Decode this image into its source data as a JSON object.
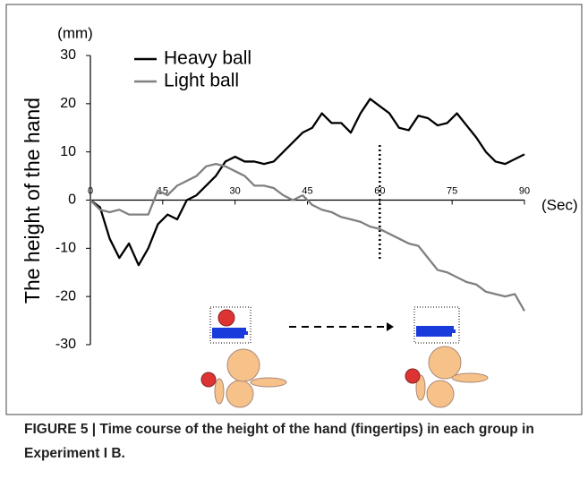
{
  "chart_data": {
    "type": "line",
    "y_label": "The height of the hand",
    "y_unit": "(mm)",
    "x_unit": "(Sec)",
    "x": [
      0,
      2,
      4,
      6,
      8,
      10,
      12,
      14,
      16,
      18,
      20,
      22,
      24,
      26,
      28,
      30,
      32,
      34,
      36,
      38,
      40,
      42,
      44,
      46,
      48,
      50,
      52,
      54,
      56,
      58,
      60,
      62,
      64,
      66,
      68,
      70,
      72,
      74,
      76,
      78,
      80,
      82,
      84,
      86,
      88,
      90
    ],
    "series": [
      {
        "name": "Heavy ball",
        "color": "#000000",
        "values": [
          0,
          -1.5,
          -8,
          -12,
          -9,
          -13.5,
          -10,
          -5,
          -3,
          -4,
          0,
          1,
          3,
          5,
          8,
          9,
          8,
          8,
          7.5,
          8,
          10,
          12,
          14,
          15,
          18,
          16,
          16,
          14,
          18,
          21,
          19.5,
          18,
          15,
          14.5,
          17.5,
          17,
          15.5,
          16,
          18,
          15.5,
          13,
          10,
          8,
          7.5,
          8.5,
          9.5
        ]
      },
      {
        "name": "Light ball",
        "color": "#808080",
        "values": [
          0,
          -2,
          -2.5,
          -2,
          -3,
          -3,
          -3,
          2,
          1,
          3,
          4,
          5,
          7,
          7.5,
          7,
          6,
          5,
          3,
          3,
          2.5,
          1,
          0,
          1,
          -1,
          -2,
          -2.5,
          -3.5,
          -4,
          -4.5,
          -5.5,
          -6,
          -7,
          -8,
          -9,
          -9.5,
          -12,
          -14.5,
          -15,
          -16,
          -17,
          -17.5,
          -19,
          -19.5,
          -20,
          -19.5,
          -23
        ]
      }
    ],
    "xlim": [
      0,
      90
    ],
    "xticks": [
      0,
      15,
      30,
      45,
      60,
      75,
      90
    ],
    "ylim": [
      -30,
      30
    ],
    "yticks": [
      30,
      20,
      10,
      0,
      -10,
      -20,
      -30
    ],
    "vline_x": 60
  },
  "caption": "FIGURE 5 | Time course of the height of the hand (fingertips) in each group in Experiment I B."
}
